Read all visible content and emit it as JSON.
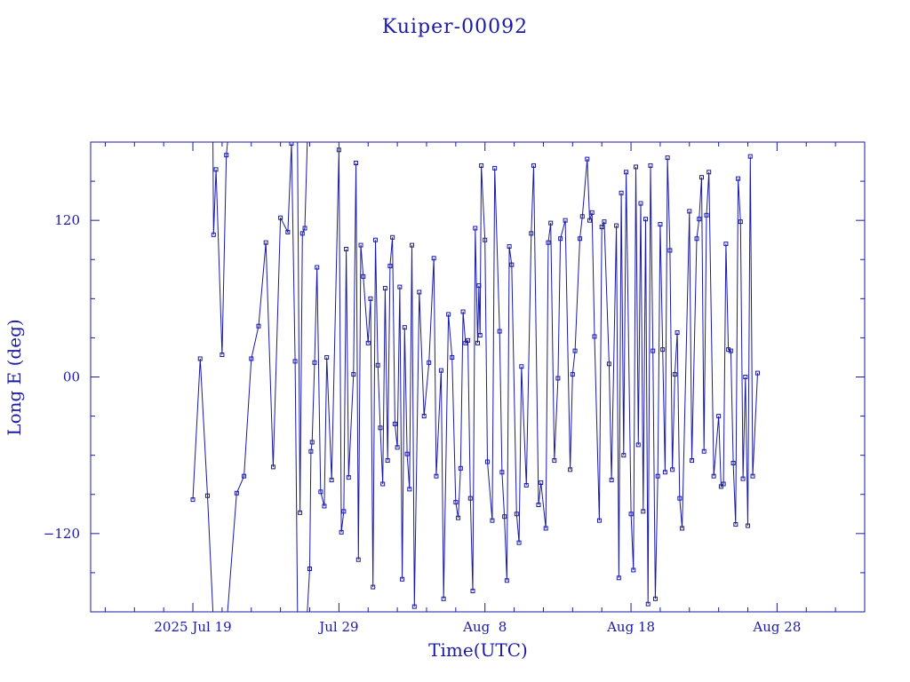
{
  "chart_data": {
    "type": "line",
    "title": "Kuiper-00092",
    "xlabel": "Time(UTC)",
    "ylabel": "Long E (deg)",
    "x_axis": "date",
    "xlim": [
      "2025-07-12",
      "2025-09-03"
    ],
    "ylim": [
      -180,
      180
    ],
    "grid": false,
    "colors": {
      "line": "#1a1aa6"
    },
    "x_ticks": [
      {
        "date": "2025-07-19",
        "label": "2025 Jul 19"
      },
      {
        "date": "2025-07-29",
        "label": "Jul 29"
      },
      {
        "date": "2025-08-08",
        "label": "Aug  8"
      },
      {
        "date": "2025-08-18",
        "label": "Aug 18"
      },
      {
        "date": "2025-08-28",
        "label": "Aug 28"
      }
    ],
    "y_ticks": [
      {
        "value": 120,
        "label": "120"
      },
      {
        "value": 0,
        "label": "00"
      },
      {
        "value": -120,
        "label": "−120"
      }
    ],
    "series": [
      {
        "values": [
          [
            "2025-07-19T00:00",
            -94
          ],
          [
            "2025-07-19T12:00",
            14
          ],
          [
            "2025-07-20T00:00",
            -91
          ],
          [
            "2025-07-20T09:00",
            -180
          ],
          [
            "2025-07-20T09:00",
            180
          ],
          [
            "2025-07-20T10:00",
            109
          ],
          [
            "2025-07-20T14:00",
            159
          ],
          [
            "2025-07-21T00:00",
            17
          ],
          [
            "2025-07-21T07:00",
            170
          ],
          [
            "2025-07-21T09:00",
            180
          ],
          [
            "2025-07-21T09:00",
            -180
          ],
          [
            "2025-07-22T00:00",
            -89
          ],
          [
            "2025-07-22T12:00",
            -76
          ],
          [
            "2025-07-23T00:00",
            14
          ],
          [
            "2025-07-23T12:00",
            39
          ],
          [
            "2025-07-24T00:00",
            103
          ],
          [
            "2025-07-24T12:00",
            -69
          ],
          [
            "2025-07-25T00:00",
            122
          ],
          [
            "2025-07-25T12:00",
            111
          ],
          [
            "2025-07-25T18:00",
            179
          ],
          [
            "2025-07-26T00:00",
            12
          ],
          [
            "2025-07-26T04:00",
            -180
          ],
          [
            "2025-07-26T04:00",
            180
          ],
          [
            "2025-07-26T08:00",
            -104
          ],
          [
            "2025-07-26T12:00",
            110
          ],
          [
            "2025-07-26T16:00",
            114
          ],
          [
            "2025-07-26T20:00",
            180
          ],
          [
            "2025-07-26T20:00",
            -180
          ],
          [
            "2025-07-27T00:00",
            -147
          ],
          [
            "2025-07-27T02:00",
            -57
          ],
          [
            "2025-07-27T04:00",
            -50
          ],
          [
            "2025-07-27T08:00",
            11
          ],
          [
            "2025-07-27T12:00",
            84
          ],
          [
            "2025-07-27T18:00",
            -88
          ],
          [
            "2025-07-28T00:00",
            -99
          ],
          [
            "2025-07-28T04:00",
            15
          ],
          [
            "2025-07-28T12:00",
            -79
          ],
          [
            "2025-07-29T00:00",
            174
          ],
          [
            "2025-07-29T04:00",
            -119
          ],
          [
            "2025-07-29T08:00",
            -103
          ],
          [
            "2025-07-29T12:00",
            98
          ],
          [
            "2025-07-29T16:00",
            -77
          ],
          [
            "2025-07-30T00:00",
            2
          ],
          [
            "2025-07-30T04:00",
            164
          ],
          [
            "2025-07-30T08:00",
            -140
          ],
          [
            "2025-07-30T12:00",
            101
          ],
          [
            "2025-07-30T16:00",
            77
          ],
          [
            "2025-07-31T00:00",
            26
          ],
          [
            "2025-07-31T04:00",
            60
          ],
          [
            "2025-07-31T08:00",
            -161
          ],
          [
            "2025-07-31T12:00",
            105
          ],
          [
            "2025-07-31T16:00",
            9
          ],
          [
            "2025-07-31T20:00",
            -39
          ],
          [
            "2025-08-01T00:00",
            -82
          ],
          [
            "2025-08-01T04:00",
            68
          ],
          [
            "2025-08-01T08:00",
            -64
          ],
          [
            "2025-08-01T12:00",
            85
          ],
          [
            "2025-08-01T16:00",
            107
          ],
          [
            "2025-08-01T20:00",
            -36
          ],
          [
            "2025-08-02T00:00",
            -54
          ],
          [
            "2025-08-02T04:00",
            69
          ],
          [
            "2025-08-02T08:00",
            -155
          ],
          [
            "2025-08-02T12:00",
            38
          ],
          [
            "2025-08-02T16:00",
            -59
          ],
          [
            "2025-08-02T20:00",
            -86
          ],
          [
            "2025-08-03T00:00",
            101
          ],
          [
            "2025-08-03T04:00",
            -176
          ],
          [
            "2025-08-03T12:00",
            65
          ],
          [
            "2025-08-03T20:00",
            -30
          ],
          [
            "2025-08-04T04:00",
            11
          ],
          [
            "2025-08-04T12:00",
            91
          ],
          [
            "2025-08-04T16:00",
            -76
          ],
          [
            "2025-08-05T00:00",
            5
          ],
          [
            "2025-08-05T04:00",
            -170
          ],
          [
            "2025-08-05T12:00",
            48
          ],
          [
            "2025-08-05T18:00",
            15
          ],
          [
            "2025-08-06T00:00",
            -96
          ],
          [
            "2025-08-06T04:00",
            -108
          ],
          [
            "2025-08-06T08:00",
            -70
          ],
          [
            "2025-08-06T12:00",
            50
          ],
          [
            "2025-08-06T16:00",
            26
          ],
          [
            "2025-08-06T20:00",
            28
          ],
          [
            "2025-08-07T00:00",
            -93
          ],
          [
            "2025-08-07T04:00",
            -164
          ],
          [
            "2025-08-07T08:00",
            114
          ],
          [
            "2025-08-07T12:00",
            26
          ],
          [
            "2025-08-07T14:00",
            70
          ],
          [
            "2025-08-07T16:00",
            32
          ],
          [
            "2025-08-07T18:00",
            162
          ],
          [
            "2025-08-08T00:00",
            105
          ],
          [
            "2025-08-08T04:00",
            -65
          ],
          [
            "2025-08-08T12:00",
            -110
          ],
          [
            "2025-08-08T16:00",
            160
          ],
          [
            "2025-08-09T00:00",
            35
          ],
          [
            "2025-08-09T04:00",
            -73
          ],
          [
            "2025-08-09T08:00",
            -107
          ],
          [
            "2025-08-09T12:00",
            -156
          ],
          [
            "2025-08-09T16:00",
            100
          ],
          [
            "2025-08-09T20:00",
            86
          ],
          [
            "2025-08-10T04:00",
            -105
          ],
          [
            "2025-08-10T08:00",
            -127
          ],
          [
            "2025-08-10T12:00",
            8
          ],
          [
            "2025-08-10T20:00",
            -83
          ],
          [
            "2025-08-11T04:00",
            110
          ],
          [
            "2025-08-11T08:00",
            162
          ],
          [
            "2025-08-11T16:00",
            -98
          ],
          [
            "2025-08-11T20:00",
            -81
          ],
          [
            "2025-08-12T04:00",
            -116
          ],
          [
            "2025-08-12T08:00",
            103
          ],
          [
            "2025-08-12T12:00",
            118
          ],
          [
            "2025-08-12T18:00",
            -64
          ],
          [
            "2025-08-13T00:00",
            -1
          ],
          [
            "2025-08-13T04:00",
            106
          ],
          [
            "2025-08-13T12:00",
            120
          ],
          [
            "2025-08-13T20:00",
            -71
          ],
          [
            "2025-08-14T00:00",
            2
          ],
          [
            "2025-08-14T04:00",
            20
          ],
          [
            "2025-08-14T12:00",
            106
          ],
          [
            "2025-08-14T16:00",
            123
          ],
          [
            "2025-08-15T00:00",
            167
          ],
          [
            "2025-08-15T04:00",
            120
          ],
          [
            "2025-08-15T08:00",
            126
          ],
          [
            "2025-08-15T12:00",
            31
          ],
          [
            "2025-08-15T20:00",
            -110
          ],
          [
            "2025-08-16T00:00",
            115
          ],
          [
            "2025-08-16T04:00",
            119
          ],
          [
            "2025-08-16T12:00",
            10
          ],
          [
            "2025-08-16T16:00",
            -79
          ],
          [
            "2025-08-17T00:00",
            116
          ],
          [
            "2025-08-17T04:00",
            -154
          ],
          [
            "2025-08-17T08:00",
            141
          ],
          [
            "2025-08-17T12:00",
            -60
          ],
          [
            "2025-08-17T16:00",
            157
          ],
          [
            "2025-08-18T00:00",
            -105
          ],
          [
            "2025-08-18T04:00",
            -148
          ],
          [
            "2025-08-18T08:00",
            161
          ],
          [
            "2025-08-18T12:00",
            -52
          ],
          [
            "2025-08-18T16:00",
            133
          ],
          [
            "2025-08-18T20:00",
            -103
          ],
          [
            "2025-08-19T00:00",
            121
          ],
          [
            "2025-08-19T04:00",
            -174
          ],
          [
            "2025-08-19T08:00",
            162
          ],
          [
            "2025-08-19T12:00",
            20
          ],
          [
            "2025-08-19T16:00",
            -170
          ],
          [
            "2025-08-19T20:00",
            -76
          ],
          [
            "2025-08-20T00:00",
            117
          ],
          [
            "2025-08-20T04:00",
            21
          ],
          [
            "2025-08-20T08:00",
            -73
          ],
          [
            "2025-08-20T12:00",
            168
          ],
          [
            "2025-08-20T16:00",
            97
          ],
          [
            "2025-08-20T20:00",
            -71
          ],
          [
            "2025-08-21T00:00",
            2
          ],
          [
            "2025-08-21T04:00",
            34
          ],
          [
            "2025-08-21T08:00",
            -93
          ],
          [
            "2025-08-21T12:00",
            -116
          ],
          [
            "2025-08-22T00:00",
            127
          ],
          [
            "2025-08-22T04:00",
            -64
          ],
          [
            "2025-08-22T12:00",
            106
          ],
          [
            "2025-08-22T16:00",
            121
          ],
          [
            "2025-08-22T20:00",
            153
          ],
          [
            "2025-08-23T00:00",
            -57
          ],
          [
            "2025-08-23T04:00",
            124
          ],
          [
            "2025-08-23T08:00",
            157
          ],
          [
            "2025-08-23T16:00",
            -76
          ],
          [
            "2025-08-24T00:00",
            -30
          ],
          [
            "2025-08-24T04:00",
            -84
          ],
          [
            "2025-08-24T08:00",
            -82
          ],
          [
            "2025-08-24T12:00",
            102
          ],
          [
            "2025-08-24T16:00",
            21
          ],
          [
            "2025-08-24T20:00",
            20
          ],
          [
            "2025-08-25T00:00",
            -66
          ],
          [
            "2025-08-25T04:00",
            -113
          ],
          [
            "2025-08-25T08:00",
            152
          ],
          [
            "2025-08-25T12:00",
            119
          ],
          [
            "2025-08-25T16:00",
            -78
          ],
          [
            "2025-08-25T20:00",
            0
          ],
          [
            "2025-08-26T00:00",
            -114
          ],
          [
            "2025-08-26T04:00",
            169
          ],
          [
            "2025-08-26T08:00",
            -76
          ],
          [
            "2025-08-26T16:00",
            3
          ]
        ]
      }
    ]
  }
}
